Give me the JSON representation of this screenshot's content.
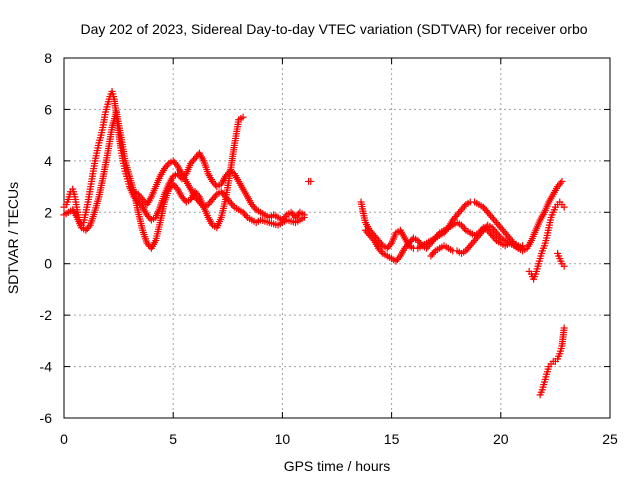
{
  "chart_data": {
    "type": "scatter",
    "title": "Day 202 of 2023, Sidereal Day-to-day VTEC variation (SDTVAR) for receiver orbo",
    "xlabel": "GPS time / hours",
    "ylabel": "SDTVAR / TECUs",
    "xlim": [
      0,
      25
    ],
    "ylim": [
      -6,
      8
    ],
    "xticks": [
      0,
      5,
      10,
      15,
      20,
      25
    ],
    "xtick_labels": [
      "0",
      "5",
      "10",
      "15",
      "20",
      "25"
    ],
    "yticks": [
      -6,
      -4,
      -2,
      0,
      2,
      4,
      6,
      8
    ],
    "ytick_labels": [
      "-6",
      "-4",
      "-2",
      "0",
      "2",
      "4",
      "6",
      "8"
    ],
    "grid": true,
    "marker": "+",
    "series": [
      {
        "name": "SDTVAR",
        "color": "#ff0000",
        "segments": [
          {
            "x": [
              0.0,
              0.1,
              0.2,
              0.3,
              0.4,
              0.5,
              0.6,
              0.7,
              0.8,
              0.9,
              1.0,
              1.1,
              1.2,
              1.3,
              1.4,
              1.5,
              1.6,
              1.7,
              1.8,
              1.9,
              2.0,
              2.1,
              2.2,
              2.3,
              2.4,
              2.5,
              2.6,
              2.7,
              2.8,
              2.9,
              3.0,
              3.2,
              3.4,
              3.6,
              3.8,
              4.0,
              4.2,
              4.4,
              4.6,
              4.8,
              5.0,
              5.2,
              5.4,
              5.6,
              5.8,
              6.0,
              6.2,
              6.4,
              6.6,
              6.8,
              7.0,
              7.2,
              7.4,
              7.6,
              7.8,
              8.0,
              8.2,
              8.4,
              8.6,
              8.8,
              9.0,
              9.2,
              9.4,
              9.6,
              9.8,
              10.0,
              10.2,
              10.4,
              10.6,
              10.8,
              11.0
            ],
            "y": [
              2.2,
              2.3,
              2.5,
              2.8,
              2.9,
              2.6,
              2.1,
              1.7,
              1.5,
              1.6,
              2.0,
              2.4,
              2.9,
              3.4,
              3.9,
              4.3,
              4.7,
              5.0,
              5.4,
              5.9,
              6.2,
              6.5,
              6.7,
              6.4,
              5.8,
              5.1,
              4.5,
              4.0,
              3.6,
              3.3,
              3.0,
              2.6,
              2.4,
              2.2,
              1.9,
              1.7,
              1.8,
              2.2,
              2.7,
              3.1,
              3.4,
              3.5,
              3.3,
              3.5,
              3.9,
              4.1,
              4.3,
              4.0,
              3.5,
              3.2,
              3.0,
              3.1,
              3.4,
              3.6,
              3.5,
              3.2,
              2.9,
              2.6,
              2.3,
              2.1,
              2.0,
              1.9,
              1.8,
              1.9,
              1.8,
              1.7,
              1.9,
              2.0,
              1.8,
              2.0,
              1.9
            ]
          },
          {
            "x": [
              0.0,
              0.2,
              0.4,
              0.6,
              0.8,
              1.0,
              1.2,
              1.4,
              1.6,
              1.8,
              2.0,
              2.2,
              2.4,
              2.6,
              2.8,
              3.0,
              3.2,
              3.4,
              3.6,
              3.8,
              4.0,
              4.2,
              4.4,
              4.6,
              4.8,
              5.0,
              5.2,
              5.4,
              5.6,
              5.8,
              6.0,
              6.2,
              6.4,
              6.6,
              6.8,
              7.0,
              7.2,
              7.4,
              7.6,
              7.8,
              8.0,
              8.2
            ],
            "y": [
              1.9,
              2.0,
              2.1,
              1.8,
              1.4,
              1.3,
              1.5,
              2.0,
              2.6,
              3.4,
              4.3,
              5.3,
              5.9,
              5.0,
              4.0,
              3.4,
              2.8,
              2.0,
              1.3,
              0.8,
              0.6,
              0.9,
              1.6,
              2.4,
              2.9,
              3.1,
              2.9,
              2.6,
              2.4,
              2.5,
              2.8,
              2.6,
              2.2,
              1.8,
              1.5,
              1.4,
              1.8,
              2.5,
              3.5,
              4.6,
              5.6,
              5.7
            ]
          },
          {
            "x": [
              3.0,
              3.2,
              3.4,
              3.6,
              3.8,
              4.0,
              4.2,
              4.4,
              4.6,
              4.8,
              5.0,
              5.2,
              5.4,
              5.6,
              5.8,
              6.0,
              6.2,
              6.4,
              6.6,
              6.8,
              7.0,
              7.2,
              7.4,
              7.6,
              7.8,
              8.0,
              8.2,
              8.4,
              8.6,
              8.8,
              9.0,
              9.4,
              9.8,
              10.2,
              10.6,
              11.0
            ],
            "y": [
              3.0,
              2.8,
              2.7,
              2.5,
              2.3,
              2.6,
              3.0,
              3.4,
              3.7,
              3.9,
              4.0,
              3.8,
              3.5,
              3.2,
              2.9,
              2.6,
              2.4,
              2.2,
              2.3,
              2.5,
              2.7,
              2.8,
              2.6,
              2.4,
              2.2,
              2.1,
              2.0,
              1.8,
              1.7,
              1.6,
              1.7,
              1.6,
              1.5,
              1.7,
              1.6,
              1.8
            ]
          },
          {
            "x": [
              11.2,
              11.3
            ],
            "y": [
              3.2,
              3.2
            ]
          },
          {
            "x": [
              13.6,
              13.8,
              14.0,
              14.2,
              14.4,
              14.6,
              14.8,
              15.0,
              15.2,
              15.4,
              15.6,
              15.8,
              16.0,
              16.2,
              16.4,
              16.6,
              16.8,
              17.0,
              17.2,
              17.4,
              17.6,
              17.8,
              18.0,
              18.2,
              18.4,
              18.6,
              18.8,
              19.0,
              19.2,
              19.4,
              19.6,
              19.8,
              20.0,
              20.2,
              20.4,
              20.6,
              20.8,
              21.0,
              21.2,
              21.4,
              21.6,
              21.8,
              22.0,
              22.2,
              22.4,
              22.6,
              22.8
            ],
            "y": [
              2.4,
              1.6,
              1.3,
              1.1,
              0.9,
              0.7,
              0.6,
              0.8,
              1.2,
              1.3,
              1.0,
              0.7,
              0.6,
              0.6,
              0.7,
              0.8,
              0.9,
              1.0,
              1.1,
              1.2,
              1.4,
              1.7,
              1.9,
              2.1,
              2.3,
              2.4,
              2.4,
              2.3,
              2.2,
              2.0,
              1.8,
              1.6,
              1.4,
              1.2,
              1.0,
              0.8,
              0.6,
              0.5,
              0.6,
              0.9,
              1.3,
              1.7,
              2.0,
              2.4,
              2.7,
              3.0,
              3.2
            ]
          },
          {
            "x": [
              13.8,
              14.0,
              14.2,
              14.4,
              14.6,
              14.8,
              15.0,
              15.2,
              15.4,
              15.6,
              15.8,
              16.0,
              16.2,
              16.4,
              16.6,
              16.8,
              17.0,
              17.2,
              17.4,
              17.6,
              17.8,
              18.0,
              18.2,
              18.4,
              18.6,
              18.8,
              19.0,
              19.2,
              19.4,
              19.6,
              19.8,
              20.0,
              20.2,
              20.4,
              20.6,
              20.8,
              21.0
            ],
            "y": [
              1.3,
              1.1,
              0.9,
              0.6,
              0.4,
              0.3,
              0.2,
              0.1,
              0.3,
              0.6,
              0.8,
              1.0,
              0.9,
              0.7,
              0.6,
              0.8,
              1.0,
              1.2,
              1.3,
              1.4,
              1.5,
              1.6,
              1.5,
              1.3,
              1.2,
              1.1,
              1.2,
              1.4,
              1.3,
              1.1,
              0.9,
              0.8,
              0.7,
              0.8,
              0.7,
              0.6,
              0.7
            ]
          },
          {
            "x": [
              16.8,
              17.0,
              17.2,
              17.4,
              17.6,
              17.8,
              18.0,
              18.2,
              18.4,
              18.6,
              18.8,
              19.0,
              19.2,
              19.4,
              19.6,
              19.8,
              20.0,
              20.2,
              20.4,
              20.6,
              20.8,
              21.0
            ],
            "y": [
              0.3,
              0.5,
              0.6,
              0.7,
              0.6,
              0.5,
              0.5,
              0.4,
              0.5,
              0.7,
              0.9,
              1.1,
              1.3,
              1.5,
              1.4,
              1.2,
              1.0,
              0.9,
              0.8,
              0.8,
              0.7,
              0.6
            ]
          },
          {
            "x": [
              21.3,
              21.4,
              21.5,
              21.6,
              21.7,
              21.8,
              21.9,
              22.0,
              22.1,
              22.2,
              22.3,
              22.4,
              22.5,
              22.6,
              22.7,
              22.8,
              22.9
            ],
            "y": [
              -0.3,
              -0.4,
              -0.6,
              -0.4,
              -0.1,
              0.2,
              0.5,
              0.7,
              1.0,
              1.4,
              1.8,
              2.0,
              2.2,
              2.3,
              2.4,
              2.3,
              2.2
            ]
          },
          {
            "x": [
              22.6,
              22.7,
              22.8,
              22.9
            ],
            "y": [
              0.4,
              0.2,
              0.0,
              -0.1
            ]
          },
          {
            "x": [
              21.8,
              21.9,
              22.0,
              22.1,
              22.2,
              22.3,
              22.4,
              22.5,
              22.6,
              22.7,
              22.8,
              22.9
            ],
            "y": [
              -5.1,
              -4.9,
              -4.6,
              -4.3,
              -4.0,
              -3.9,
              -3.8,
              -3.8,
              -3.7,
              -3.5,
              -3.2,
              -2.5
            ]
          }
        ]
      }
    ]
  }
}
